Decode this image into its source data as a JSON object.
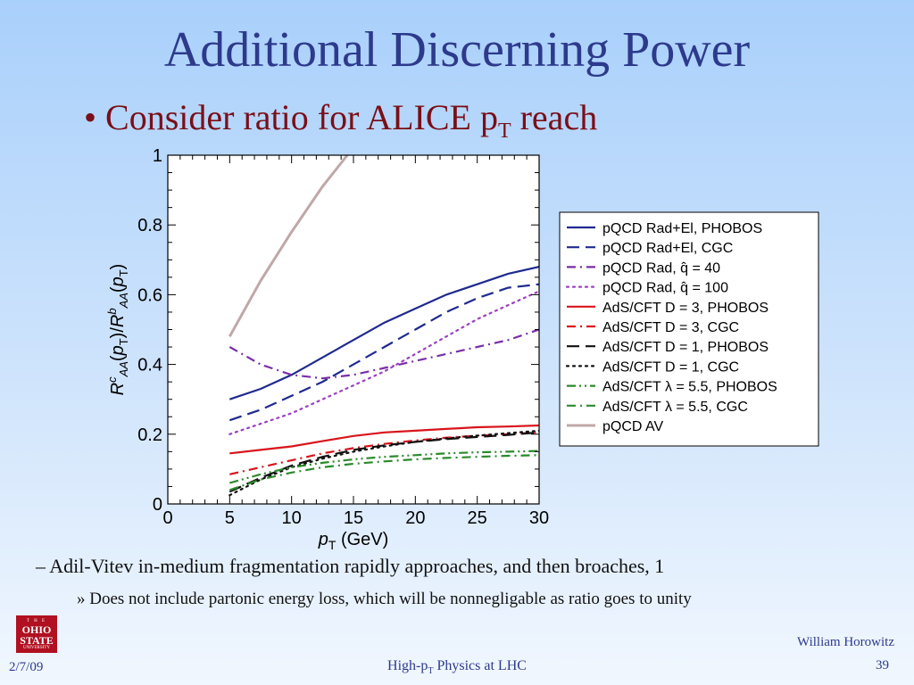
{
  "slide": {
    "title": "Additional Discerning Power",
    "bullet": {
      "bullet_char": "•",
      "text_before": "Consider ratio for ALICE p",
      "subscript": "T",
      "text_after": " reach"
    },
    "sub1": "–  Adil-Vitev in-medium fragmentation rapidly approaches, and then broaches, 1",
    "sub2": "»  Does not include partonic energy loss, which will be nonnegligable as ratio goes to unity",
    "logo": {
      "line1": "T H E",
      "line2a": "OHIO",
      "line2b": "STATE",
      "line3": "UNIVERSITY"
    },
    "date": "2/7/09",
    "footer": {
      "before": "High-p",
      "subscript": "T",
      "after": " Physics at LHC"
    },
    "author": "William Horowitz",
    "page_number": "39"
  },
  "chart_data": {
    "type": "line",
    "xlabel": "p_T (GeV)",
    "ylabel": "R^c_AA(p_T)/R^b_AA(p_T)",
    "xlim": [
      0,
      30
    ],
    "ylim": [
      0,
      1
    ],
    "x_ticks": [
      "0",
      "5",
      "10",
      "15",
      "20",
      "25",
      "30"
    ],
    "y_ticks": [
      "0",
      "0.2",
      "0.4",
      "0.6",
      "0.8",
      "1"
    ],
    "grid": false,
    "legend_position": "right",
    "series": [
      {
        "name": "pQCD Rad+El, PHOBOS",
        "color": "#1f2a8f",
        "dash": "solid",
        "x": [
          5,
          7.5,
          10,
          12.5,
          15,
          17.5,
          20,
          22.5,
          25,
          27.5,
          30
        ],
        "y": [
          0.3,
          0.33,
          0.37,
          0.42,
          0.47,
          0.52,
          0.56,
          0.6,
          0.63,
          0.66,
          0.68
        ]
      },
      {
        "name": "pQCD Rad+El, CGC",
        "color": "#1f2a8f",
        "dash": "dash",
        "x": [
          5,
          7.5,
          10,
          12.5,
          15,
          17.5,
          20,
          22.5,
          25,
          27.5,
          30
        ],
        "y": [
          0.24,
          0.27,
          0.31,
          0.35,
          0.4,
          0.45,
          0.5,
          0.55,
          0.59,
          0.62,
          0.63
        ]
      },
      {
        "name": "pQCD Rad, q̂ = 40",
        "color": "#7a2fa8",
        "dash": "dashdot",
        "x": [
          5,
          7.5,
          10,
          12.5,
          15,
          17.5,
          20,
          22.5,
          25,
          27.5,
          30
        ],
        "y": [
          0.45,
          0.4,
          0.37,
          0.36,
          0.37,
          0.39,
          0.41,
          0.43,
          0.45,
          0.47,
          0.5
        ]
      },
      {
        "name": "pQCD Rad, q̂ = 100",
        "color": "#9b3fc0",
        "dash": "dot",
        "x": [
          5,
          7.5,
          10,
          12.5,
          15,
          17.5,
          20,
          22.5,
          25,
          27.5,
          30
        ],
        "y": [
          0.2,
          0.23,
          0.26,
          0.3,
          0.34,
          0.38,
          0.43,
          0.48,
          0.53,
          0.57,
          0.61
        ]
      },
      {
        "name": "AdS/CFT D = 3, PHOBOS",
        "color": "#d8141c",
        "dash": "solid",
        "x": [
          5,
          7.5,
          10,
          12.5,
          15,
          17.5,
          20,
          22.5,
          25,
          27.5,
          30
        ],
        "y": [
          0.145,
          0.155,
          0.165,
          0.18,
          0.195,
          0.205,
          0.21,
          0.215,
          0.22,
          0.222,
          0.225
        ]
      },
      {
        "name": "AdS/CFT D = 3, CGC",
        "color": "#d8141c",
        "dash": "dashdot",
        "x": [
          5,
          7.5,
          10,
          12.5,
          15,
          17.5,
          20,
          22.5,
          25,
          27.5,
          30
        ],
        "y": [
          0.085,
          0.105,
          0.125,
          0.145,
          0.16,
          0.172,
          0.182,
          0.19,
          0.196,
          0.2,
          0.205
        ]
      },
      {
        "name": "AdS/CFT D = 1, PHOBOS",
        "color": "#111111",
        "dash": "dash",
        "x": [
          5,
          7.5,
          10,
          12.5,
          15,
          17.5,
          20,
          22.5,
          25,
          27.5,
          30
        ],
        "y": [
          0.035,
          0.075,
          0.11,
          0.135,
          0.155,
          0.168,
          0.178,
          0.186,
          0.192,
          0.198,
          0.205
        ]
      },
      {
        "name": "AdS/CFT D = 1, CGC",
        "color": "#111111",
        "dash": "dot",
        "x": [
          5,
          7.5,
          10,
          12.5,
          15,
          17.5,
          20,
          22.5,
          25,
          27.5,
          30
        ],
        "y": [
          0.025,
          0.07,
          0.105,
          0.13,
          0.15,
          0.165,
          0.178,
          0.188,
          0.196,
          0.203,
          0.21
        ]
      },
      {
        "name": "AdS/CFT λ = 5.5, PHOBOS",
        "color": "#2b8a2b",
        "dash": "dashdotdot",
        "x": [
          5,
          7.5,
          10,
          12.5,
          15,
          17.5,
          20,
          22.5,
          25,
          27.5,
          30
        ],
        "y": [
          0.06,
          0.085,
          0.105,
          0.118,
          0.128,
          0.135,
          0.14,
          0.145,
          0.148,
          0.15,
          0.152
        ]
      },
      {
        "name": "AdS/CFT λ = 5.5, CGC",
        "color": "#2b8a2b",
        "dash": "dashdot",
        "x": [
          5,
          7.5,
          10,
          12.5,
          15,
          17.5,
          20,
          22.5,
          25,
          27.5,
          30
        ],
        "y": [
          0.04,
          0.07,
          0.09,
          0.105,
          0.115,
          0.122,
          0.128,
          0.132,
          0.135,
          0.138,
          0.14
        ]
      },
      {
        "name": "pQCD AV",
        "color": "#c0a8a8",
        "dash": "solid",
        "x": [
          5,
          7.5,
          10,
          12.5,
          14.5
        ],
        "y": [
          0.48,
          0.64,
          0.78,
          0.91,
          1.0
        ]
      }
    ]
  }
}
